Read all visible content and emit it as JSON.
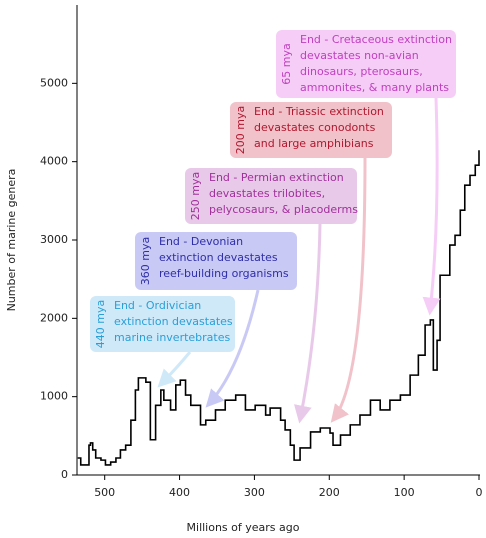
{
  "chart_data": {
    "type": "line",
    "step": true,
    "x_label": "Millions of years ago",
    "y_label": "Number of marine genera",
    "xlim": [
      537,
      0
    ],
    "xticks": [
      500,
      400,
      300,
      200,
      100,
      0
    ],
    "ylim": [
      0,
      6000
    ],
    "yticks": [
      0,
      1000,
      2000,
      3000,
      4000,
      5000
    ],
    "series": [
      {
        "name": "Marine genera",
        "color": "#000000",
        "x": [
          536,
          532,
          525,
          521,
          519,
          516,
          512,
          505,
          499,
          492,
          485,
          479,
          472,
          465,
          459,
          455,
          445,
          439,
          432,
          425,
          421,
          412,
          405,
          399,
          392,
          385,
          372,
          365,
          352,
          339,
          325,
          312,
          299,
          285,
          279,
          265,
          259,
          252,
          247,
          239,
          225,
          212,
          199,
          195,
          185,
          172,
          159,
          145,
          132,
          119,
          105,
          92,
          81,
          72,
          65,
          61,
          56,
          52,
          39,
          32,
          25,
          19,
          12,
          5,
          0
        ],
        "values": [
          217,
          128,
          128,
          380,
          410,
          320,
          217,
          190,
          128,
          165,
          217,
          320,
          380,
          700,
          1085,
          1240,
          1185,
          450,
          890,
          1085,
          955,
          830,
          1150,
          1210,
          1020,
          890,
          640,
          700,
          830,
          955,
          1020,
          830,
          890,
          765,
          855,
          700,
          575,
          380,
          190,
          345,
          550,
          600,
          535,
          380,
          510,
          640,
          765,
          955,
          830,
          955,
          1020,
          1275,
          1530,
          1915,
          1980,
          1340,
          1720,
          2550,
          2935,
          3060,
          3380,
          3700,
          3825,
          3955,
          4145
        ]
      }
    ],
    "annotations": [
      {
        "date": "440 mya",
        "lines": [
          "End - Ordivician",
          "extinction devastates",
          "marine invertebrates"
        ],
        "color": "#2a9fd6",
        "fill": "#cfe9f9"
      },
      {
        "date": "360 mya",
        "lines": [
          "End - Devonian",
          "extinction devastates",
          "reef-building organisms"
        ],
        "color": "#2e2ea8",
        "fill": "#c9c9f5"
      },
      {
        "date": "250 mya",
        "lines": [
          "End - Permian extinction",
          "devastates trilobites,",
          "pelycosaurs, & placoderms"
        ],
        "color": "#a0309a",
        "fill": "#e9c9e9"
      },
      {
        "date": "200 mya",
        "lines": [
          "End - Triassic extinction",
          "devastates conodonts",
          "and large amphibians"
        ],
        "color": "#b01830",
        "fill": "#f1c2c9"
      },
      {
        "date": "65 mya",
        "lines": [
          "End - Cretaceous extinction",
          "devastates non-avian",
          "dinosaurs, pterosaurs,",
          "ammonites, & many plants"
        ],
        "color": "#c040c0",
        "fill": "#f6cdf6"
      }
    ]
  }
}
